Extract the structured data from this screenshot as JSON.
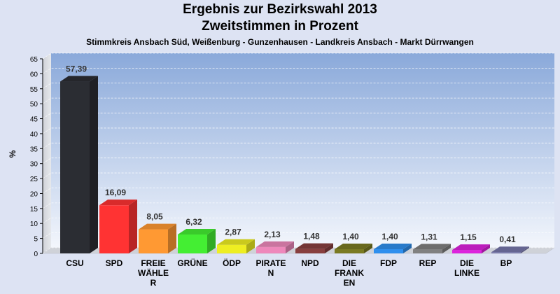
{
  "chart_data": {
    "type": "bar",
    "title": "Ergebnis zur Bezirkswahl 2013",
    "subtitle": "Zweitstimmen in Prozent",
    "caption": "Stimmkreis Ansbach Süd, Weißenburg - Gunzenhausen - Landkreis Ansbach - Markt Dürrwangen",
    "ylabel": "%",
    "ylim": [
      0,
      65
    ],
    "yticks": [
      0,
      5,
      10,
      15,
      20,
      25,
      30,
      35,
      40,
      45,
      50,
      55,
      60,
      65
    ],
    "grid": true,
    "categories": [
      [
        "CSU"
      ],
      [
        "SPD"
      ],
      [
        "FREIE",
        "WÄHLE",
        "R"
      ],
      [
        "GRÜNE"
      ],
      [
        "ÖDP"
      ],
      [
        "PIRATE",
        "N"
      ],
      [
        "NPD"
      ],
      [
        "DIE",
        "FRANK",
        "EN"
      ],
      [
        "FDP"
      ],
      [
        "REP"
      ],
      [
        "DIE",
        "LINKE"
      ],
      [
        "BP"
      ]
    ],
    "values": [
      57.39,
      16.09,
      8.05,
      6.32,
      2.87,
      2.13,
      1.48,
      1.4,
      1.4,
      1.31,
      1.15,
      0.41
    ],
    "value_labels": [
      "57,39",
      "16,09",
      "8,05",
      "6,32",
      "2,87",
      "2,13",
      "1,48",
      "1,40",
      "1,40",
      "1,31",
      "1,15",
      "0,41"
    ],
    "colors": [
      "#2b2d33",
      "#ff3333",
      "#ff9933",
      "#44ee33",
      "#eeee22",
      "#ee88bb",
      "#883f3f",
      "#7a7a22",
      "#2f8fee",
      "#808080",
      "#dd22dd",
      "#7777aa"
    ]
  }
}
